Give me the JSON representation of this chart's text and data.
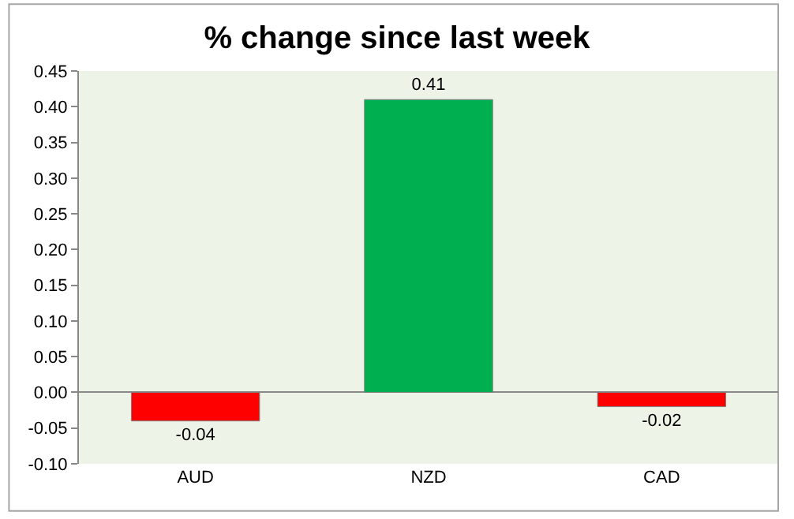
{
  "chart_data": {
    "type": "bar",
    "title": "% change since last week",
    "categories": [
      "AUD",
      "NZD",
      "CAD"
    ],
    "values": [
      -0.04,
      0.41,
      -0.02
    ],
    "colors": [
      "#ff0000",
      "#00b050",
      "#ff0000"
    ],
    "data_labels": true,
    "ylim": [
      -0.1,
      0.45
    ],
    "yticks": [
      {
        "value": -0.1,
        "label": "-0.10"
      },
      {
        "value": -0.05,
        "label": "-0.05"
      },
      {
        "value": 0,
        "label": "0.00"
      },
      {
        "value": 0.05,
        "label": "0.05"
      },
      {
        "value": 0.1,
        "label": "0.10"
      },
      {
        "value": 0.15,
        "label": "0.15"
      },
      {
        "value": 0.2,
        "label": "0.20"
      },
      {
        "value": 0.25,
        "label": "0.25"
      },
      {
        "value": 0.3,
        "label": "0.30"
      },
      {
        "value": 0.35,
        "label": "0.35"
      },
      {
        "value": 0.4,
        "label": "0.40"
      },
      {
        "value": 0.45,
        "label": "0.45"
      }
    ],
    "legend": false
  }
}
